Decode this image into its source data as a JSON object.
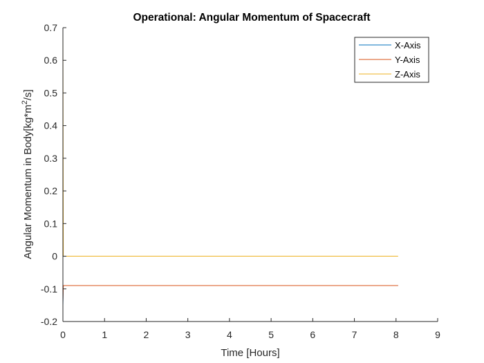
{
  "chart_data": {
    "type": "line",
    "title": "Operational: Angular Momentum of Spacecraft",
    "xlabel": "Time [Hours]",
    "ylabel_main": "Angular Momentum in Body[kg*m",
    "ylabel_sup": "2",
    "ylabel_end": "/s]",
    "xlim": [
      0,
      9
    ],
    "ylim": [
      -0.2,
      0.7
    ],
    "x_ticks": [
      "0",
      "1",
      "2",
      "3",
      "4",
      "5",
      "6",
      "7",
      "8",
      "9"
    ],
    "y_ticks": [
      "-0.2",
      "-0.1",
      "0",
      "0.1",
      "0.2",
      "0.3",
      "0.4",
      "0.5",
      "0.6",
      "0.7"
    ],
    "grid": false,
    "legend_position": "top-right",
    "series": [
      {
        "name": "X-Axis",
        "color": "#0072BD",
        "x": [
          0,
          0.01,
          8.05
        ],
        "y": [
          -0.15,
          -0.09,
          -0.09
        ]
      },
      {
        "name": "Y-Axis",
        "color": "#D95319",
        "x": [
          0,
          0.01,
          8.05
        ],
        "y": [
          -0.14,
          -0.09,
          -0.09
        ]
      },
      {
        "name": "Z-Axis",
        "color": "#EDB120",
        "x": [
          0,
          0.005,
          0.01,
          8.05
        ],
        "y": [
          0.69,
          0.3,
          0.0,
          0.0
        ]
      }
    ]
  }
}
